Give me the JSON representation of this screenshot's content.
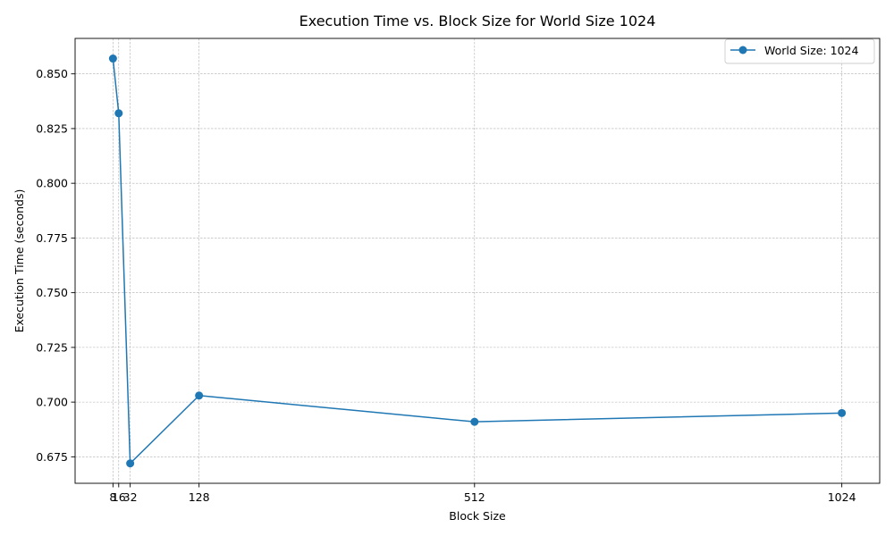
{
  "chart_data": {
    "type": "line",
    "title": "Execution Time vs. Block Size for World Size 1024",
    "xlabel": "Block Size",
    "ylabel": "Execution Time (seconds)",
    "x": [
      8,
      16,
      32,
      128,
      512,
      1024
    ],
    "x_tick_labels": [
      "8",
      "16",
      "32",
      "128",
      "512",
      "1024"
    ],
    "xlim": [
      -44.8,
      1076.8
    ],
    "ylim": [
      0.6629,
      0.8662
    ],
    "y_ticks": [
      0.675,
      0.7,
      0.725,
      0.75,
      0.775,
      0.8,
      0.825,
      0.85
    ],
    "y_tick_labels": [
      "0.675",
      "0.700",
      "0.725",
      "0.750",
      "0.775",
      "0.800",
      "0.825",
      "0.850"
    ],
    "grid": true,
    "legend_position": "top-right",
    "series": [
      {
        "name": "World Size: 1024",
        "color": "#1f77b4",
        "marker": "circle",
        "values": [
          0.857,
          0.832,
          0.672,
          0.703,
          0.691,
          0.695
        ]
      }
    ]
  }
}
